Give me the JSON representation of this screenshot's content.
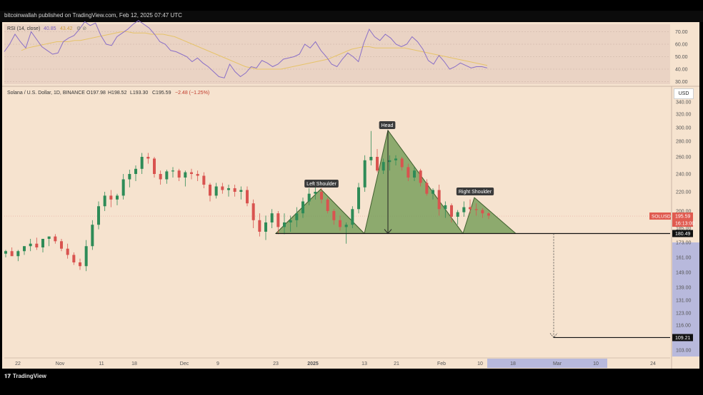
{
  "header": {
    "published": "bitcoinwallah published on TradingView.com, Feb 12, 2025 07:47 UTC"
  },
  "footer": {
    "brand": "TradingView",
    "brand_icon": "tradingview-logo-icon"
  },
  "currency": "USD",
  "colors": {
    "up": "#2e8b57",
    "down": "#d9534f",
    "pattern_fill": "#6f9a52",
    "rsi_line": "#8a6fc7",
    "rsi_ma": "#e6c36a",
    "xaxis_highlight": "#b8b9dc"
  },
  "chart_data": [
    {
      "type": "line",
      "title": "RSI (14, close)",
      "rsi_value": "40.85",
      "rsi_ma_value": "43.42",
      "y_ticks": [
        "70.00",
        "60.00",
        "50.00",
        "40.00",
        "30.00"
      ],
      "ylim": [
        28,
        76
      ],
      "rsi": [
        54,
        60,
        68,
        62,
        57,
        70,
        64,
        58,
        55,
        52,
        53,
        62,
        65,
        67,
        72,
        78,
        75,
        77,
        67,
        60,
        59,
        66,
        69,
        72,
        76,
        79,
        76,
        73,
        68,
        62,
        60,
        55,
        54,
        52,
        50,
        46,
        49,
        45,
        42,
        38,
        34,
        33,
        44,
        38,
        34,
        37,
        42,
        41,
        47,
        45,
        42,
        44,
        48,
        49,
        50,
        52,
        60,
        57,
        62,
        55,
        50,
        44,
        42,
        48,
        53,
        50,
        46,
        61,
        72,
        66,
        63,
        68,
        65,
        60,
        58,
        60,
        66,
        62,
        56,
        47,
        44,
        51,
        46,
        40,
        42,
        45,
        43,
        41,
        42,
        42,
        41
      ],
      "rsi_ma": [
        55,
        57,
        58,
        59,
        60,
        61,
        62,
        62,
        62,
        63,
        63,
        64,
        65,
        66,
        67,
        68,
        69,
        70,
        70,
        69,
        69,
        69,
        68,
        68,
        68,
        67,
        66,
        64,
        62,
        60,
        58,
        56,
        54,
        52,
        50,
        48,
        46,
        44,
        42,
        41,
        40,
        40,
        40,
        40,
        40,
        41,
        42,
        43,
        44,
        45,
        46,
        47,
        48,
        50,
        52,
        54,
        56,
        57,
        58,
        58,
        57,
        57,
        57,
        57,
        57,
        57,
        56,
        55,
        54,
        53,
        52,
        51,
        50,
        49,
        48,
        47,
        46,
        45,
        44,
        43
      ]
    },
    {
      "type": "candlestick",
      "title": "Solana / U.S. Dollar, 1D, BINANCE",
      "ohlc_readout": {
        "o": "O197.98",
        "h": "H198.52",
        "l": "L193.30",
        "c": "C195.59",
        "chg": "−2.48 (−1.25%)"
      },
      "ylim": [
        100,
        345
      ],
      "y_ticks": [
        "340.00",
        "320.00",
        "300.00",
        "280.00",
        "260.00",
        "240.00",
        "220.00",
        "200.00",
        "185.00",
        "173.00",
        "161.00",
        "149.00",
        "139.00",
        "131.00",
        "123.00",
        "116.00",
        "109.00",
        "103.00"
      ],
      "x_ticks": [
        "22",
        "Nov",
        "11",
        "18",
        "Dec",
        "9",
        "23",
        "2025",
        "13",
        "21",
        "Feb",
        "10",
        "18",
        "Mar",
        "10",
        "24"
      ],
      "candles": [
        [
          164,
          167,
          161,
          166
        ],
        [
          166,
          169,
          163,
          162
        ],
        [
          162,
          167,
          158,
          166
        ],
        [
          166,
          170,
          163,
          170
        ],
        [
          170,
          176,
          166,
          172
        ],
        [
          172,
          177,
          167,
          169
        ],
        [
          169,
          176,
          165,
          176
        ],
        [
          176,
          178,
          170,
          178
        ],
        [
          178,
          180,
          172,
          174
        ],
        [
          174,
          176,
          166,
          168
        ],
        [
          168,
          172,
          160,
          163
        ],
        [
          163,
          165,
          155,
          157
        ],
        [
          157,
          160,
          151,
          154
        ],
        [
          154,
          175,
          150,
          170
        ],
        [
          170,
          192,
          167,
          188
        ],
        [
          188,
          210,
          184,
          205
        ],
        [
          205,
          220,
          200,
          216
        ],
        [
          216,
          222,
          204,
          212
        ],
        [
          212,
          218,
          206,
          216
        ],
        [
          216,
          240,
          212,
          234
        ],
        [
          234,
          245,
          225,
          240
        ],
        [
          240,
          250,
          232,
          246
        ],
        [
          246,
          265,
          240,
          260
        ],
        [
          260,
          265,
          252,
          258
        ],
        [
          258,
          260,
          236,
          240
        ],
        [
          240,
          244,
          228,
          234
        ],
        [
          234,
          245,
          229,
          243
        ],
        [
          243,
          248,
          236,
          244
        ],
        [
          244,
          246,
          232,
          236
        ],
        [
          236,
          244,
          226,
          242
        ],
        [
          242,
          246,
          234,
          240
        ],
        [
          240,
          244,
          232,
          238
        ],
        [
          238,
          242,
          224,
          228
        ],
        [
          228,
          230,
          210,
          216
        ],
        [
          216,
          230,
          213,
          226
        ],
        [
          226,
          230,
          218,
          222
        ],
        [
          222,
          228,
          215,
          224
        ],
        [
          224,
          228,
          215,
          220
        ],
        [
          220,
          226,
          212,
          222
        ],
        [
          222,
          226,
          205,
          208
        ],
        [
          208,
          212,
          185,
          192
        ],
        [
          192,
          198,
          178,
          182
        ],
        [
          182,
          196,
          175,
          190
        ],
        [
          190,
          202,
          185,
          198
        ],
        [
          198,
          200,
          180,
          186
        ],
        [
          186,
          198,
          180,
          190
        ],
        [
          190,
          196,
          182,
          192
        ],
        [
          192,
          204,
          186,
          198
        ],
        [
          198,
          214,
          194,
          210
        ],
        [
          210,
          224,
          206,
          218
        ],
        [
          218,
          226,
          212,
          220
        ],
        [
          220,
          224,
          208,
          212
        ],
        [
          212,
          214,
          198,
          200
        ],
        [
          200,
          202,
          188,
          192
        ],
        [
          192,
          196,
          183,
          186
        ],
        [
          186,
          190,
          172,
          188
        ],
        [
          188,
          205,
          185,
          202
        ],
        [
          202,
          230,
          198,
          225
        ],
        [
          225,
          262,
          220,
          256
        ],
        [
          256,
          295,
          250,
          260
        ],
        [
          260,
          270,
          242,
          244
        ],
        [
          244,
          258,
          240,
          254
        ],
        [
          254,
          262,
          244,
          256
        ],
        [
          256,
          262,
          250,
          258
        ],
        [
          258,
          260,
          244,
          248
        ],
        [
          248,
          252,
          232,
          236
        ],
        [
          236,
          248,
          232,
          244
        ],
        [
          244,
          246,
          226,
          230
        ],
        [
          230,
          234,
          216,
          218
        ],
        [
          218,
          224,
          212,
          222
        ],
        [
          222,
          228,
          196,
          202
        ],
        [
          202,
          210,
          194,
          206
        ],
        [
          206,
          208,
          190,
          195
        ],
        [
          195,
          201,
          188,
          199
        ],
        [
          199,
          210,
          195,
          204
        ],
        [
          204,
          212,
          198,
          202
        ],
        [
          202,
          208,
          196,
          201
        ],
        [
          201,
          203,
          194,
          198
        ],
        [
          198,
          199,
          193,
          196
        ]
      ],
      "last_price": "195.59",
      "countdown": "16:13:00",
      "symbol_tag": "SOLUSD",
      "neckline_price": "180.49",
      "target_price": "109.21",
      "pattern_labels": {
        "left": "Left Shoulder",
        "head": "Head",
        "right": "Right Shoulder"
      }
    }
  ]
}
